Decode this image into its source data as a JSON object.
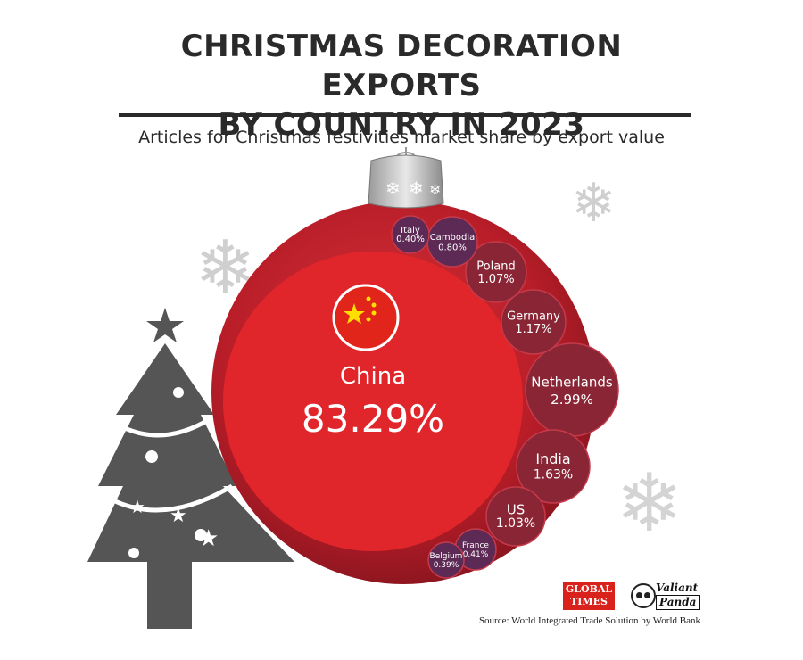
{
  "title_line1": "CHRISTMAS DECORATION EXPORTS",
  "title_line2": "BY COUNTRY IN 2023",
  "subtitle": "Articles for Christmas festivities market share by export value",
  "source": "Source: World Integrated Trade Solution by World Bank",
  "logos": {
    "global_times_line1": "GLOBAL",
    "global_times_line2": "TIMES",
    "valiant_panda_line1": "Valiant",
    "valiant_panda_line2": "Panda"
  },
  "colors": {
    "ornament": "#c0202a",
    "china_bubble": "#e1262b",
    "small_bubble": "#7a2338",
    "mid_bubble": "#8a2535",
    "tree": "#555555",
    "snowflake": "#cfcfcf"
  },
  "chart_data": {
    "type": "bubble",
    "title": "CHRISTMAS DECORATION EXPORTS BY COUNTRY IN 2023",
    "subtitle": "Articles for Christmas festivities market share by export value",
    "unit": "%",
    "data": [
      {
        "country": "China",
        "share": 83.29,
        "label": "83.29%"
      },
      {
        "country": "Netherlands",
        "share": 2.99,
        "label": "2.99%"
      },
      {
        "country": "India",
        "share": 1.63,
        "label": "1.63%"
      },
      {
        "country": "Germany",
        "share": 1.17,
        "label": "1.17%"
      },
      {
        "country": "Poland",
        "share": 1.07,
        "label": "1.07%"
      },
      {
        "country": "US",
        "share": 1.03,
        "label": "1.03%"
      },
      {
        "country": "Cambodia",
        "share": 0.8,
        "label": "0.80%"
      },
      {
        "country": "France",
        "share": 0.41,
        "label": "0.41%"
      },
      {
        "country": "Italy",
        "share": 0.4,
        "label": "0.40%"
      },
      {
        "country": "Belgium",
        "share": 0.39,
        "label": "0.39%"
      }
    ]
  }
}
